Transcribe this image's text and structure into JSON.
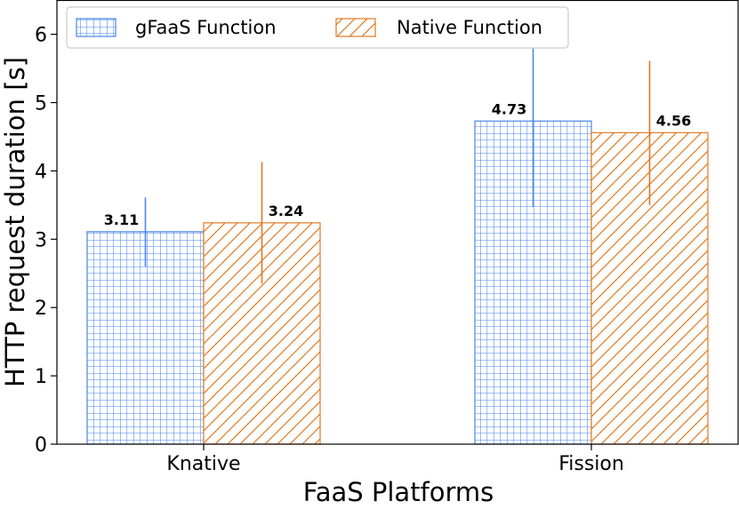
{
  "chart_data": {
    "type": "bar",
    "categories": [
      "Knative",
      "Fission"
    ],
    "series": [
      {
        "name": "gFaaS Function",
        "values": [
          3.11,
          4.73
        ],
        "error_low": [
          2.6,
          3.47
        ],
        "error_high": [
          3.61,
          5.99
        ],
        "color": "#4a86e8",
        "pattern": "grid"
      },
      {
        "name": "Native Function",
        "values": [
          3.24,
          4.56
        ],
        "error_low": [
          2.35,
          3.5
        ],
        "error_high": [
          4.13,
          5.61
        ],
        "color": "#e07a22",
        "pattern": "diagonal"
      }
    ],
    "data_labels": [
      [
        "3.11",
        "4.73"
      ],
      [
        "3.24",
        "4.56"
      ]
    ],
    "xlabel": "FaaS Platforms",
    "ylabel": "HTTP request duration [s]",
    "ylim": [
      0,
      6.4
    ],
    "yticks": [
      "0",
      "1",
      "2",
      "3",
      "4",
      "5",
      "6"
    ],
    "grid": false,
    "legend_position": "top-left"
  }
}
